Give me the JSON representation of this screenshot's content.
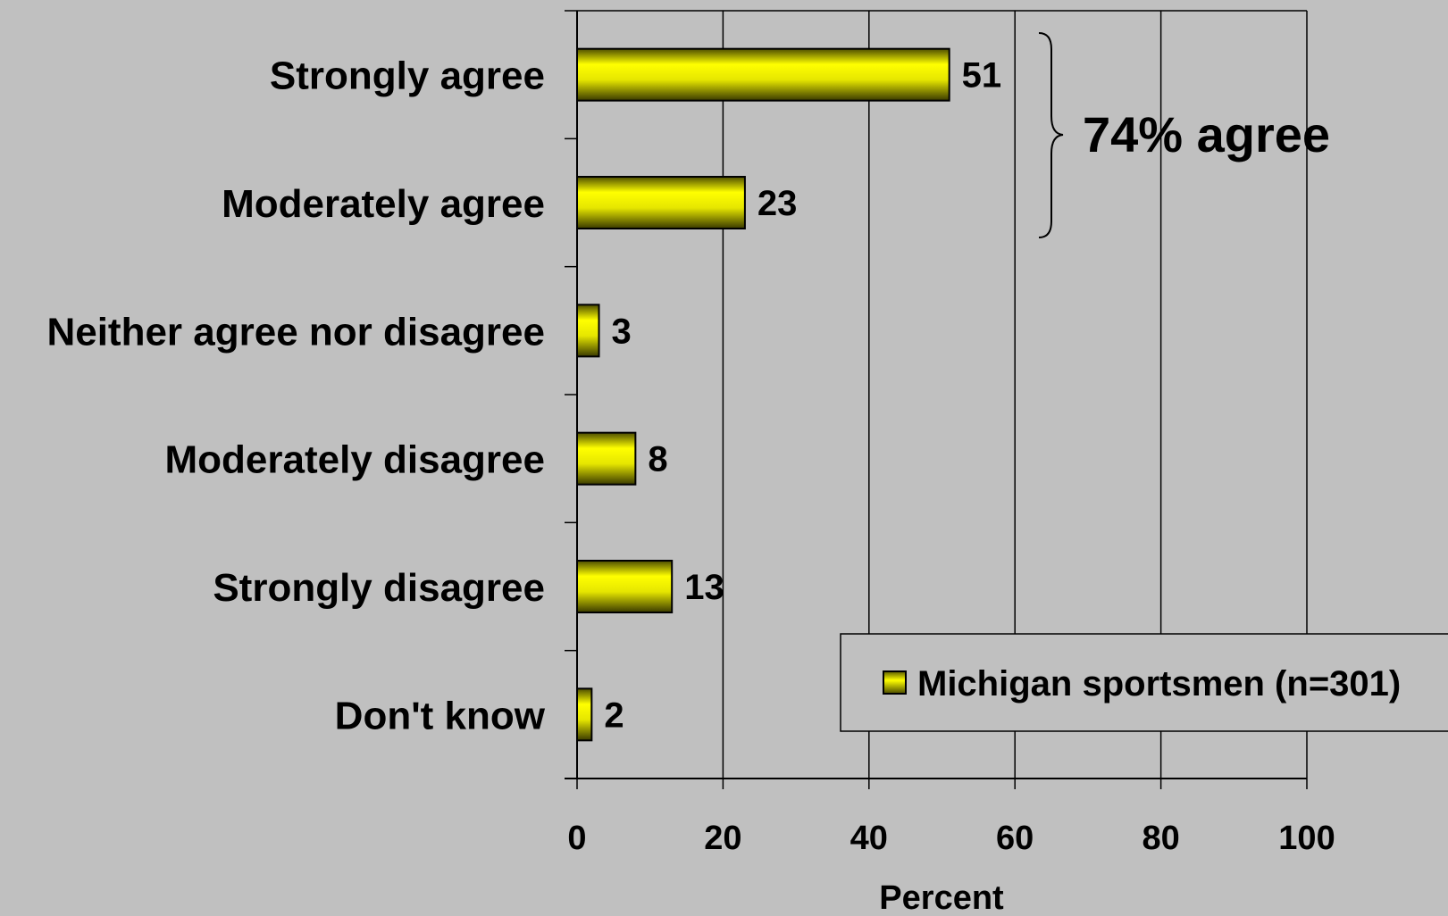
{
  "chart_data": {
    "type": "bar",
    "orientation": "horizontal",
    "categories": [
      "Strongly agree",
      "Moderately agree",
      "Neither agree nor disagree",
      "Moderately disagree",
      "Strongly disagree",
      "Don't know"
    ],
    "series": [
      {
        "name": "Michigan sportsmen (n=301)",
        "values": [
          51,
          23,
          3,
          8,
          13,
          2
        ],
        "color": "#ffff00"
      }
    ],
    "xlabel": "Percent",
    "xlim": [
      0,
      100
    ],
    "xticks": [
      0,
      20,
      40,
      60,
      80,
      100
    ],
    "grid": "vertical",
    "legend": "bottom-right",
    "annotation": {
      "text": "74% agree",
      "brace_spans": [
        "Strongly agree",
        "Moderately agree"
      ]
    },
    "colors": {
      "background": "#c0c0c0",
      "bar_fill": "#ffff00",
      "bar_edge": "#000000",
      "grid": "#000000"
    }
  }
}
